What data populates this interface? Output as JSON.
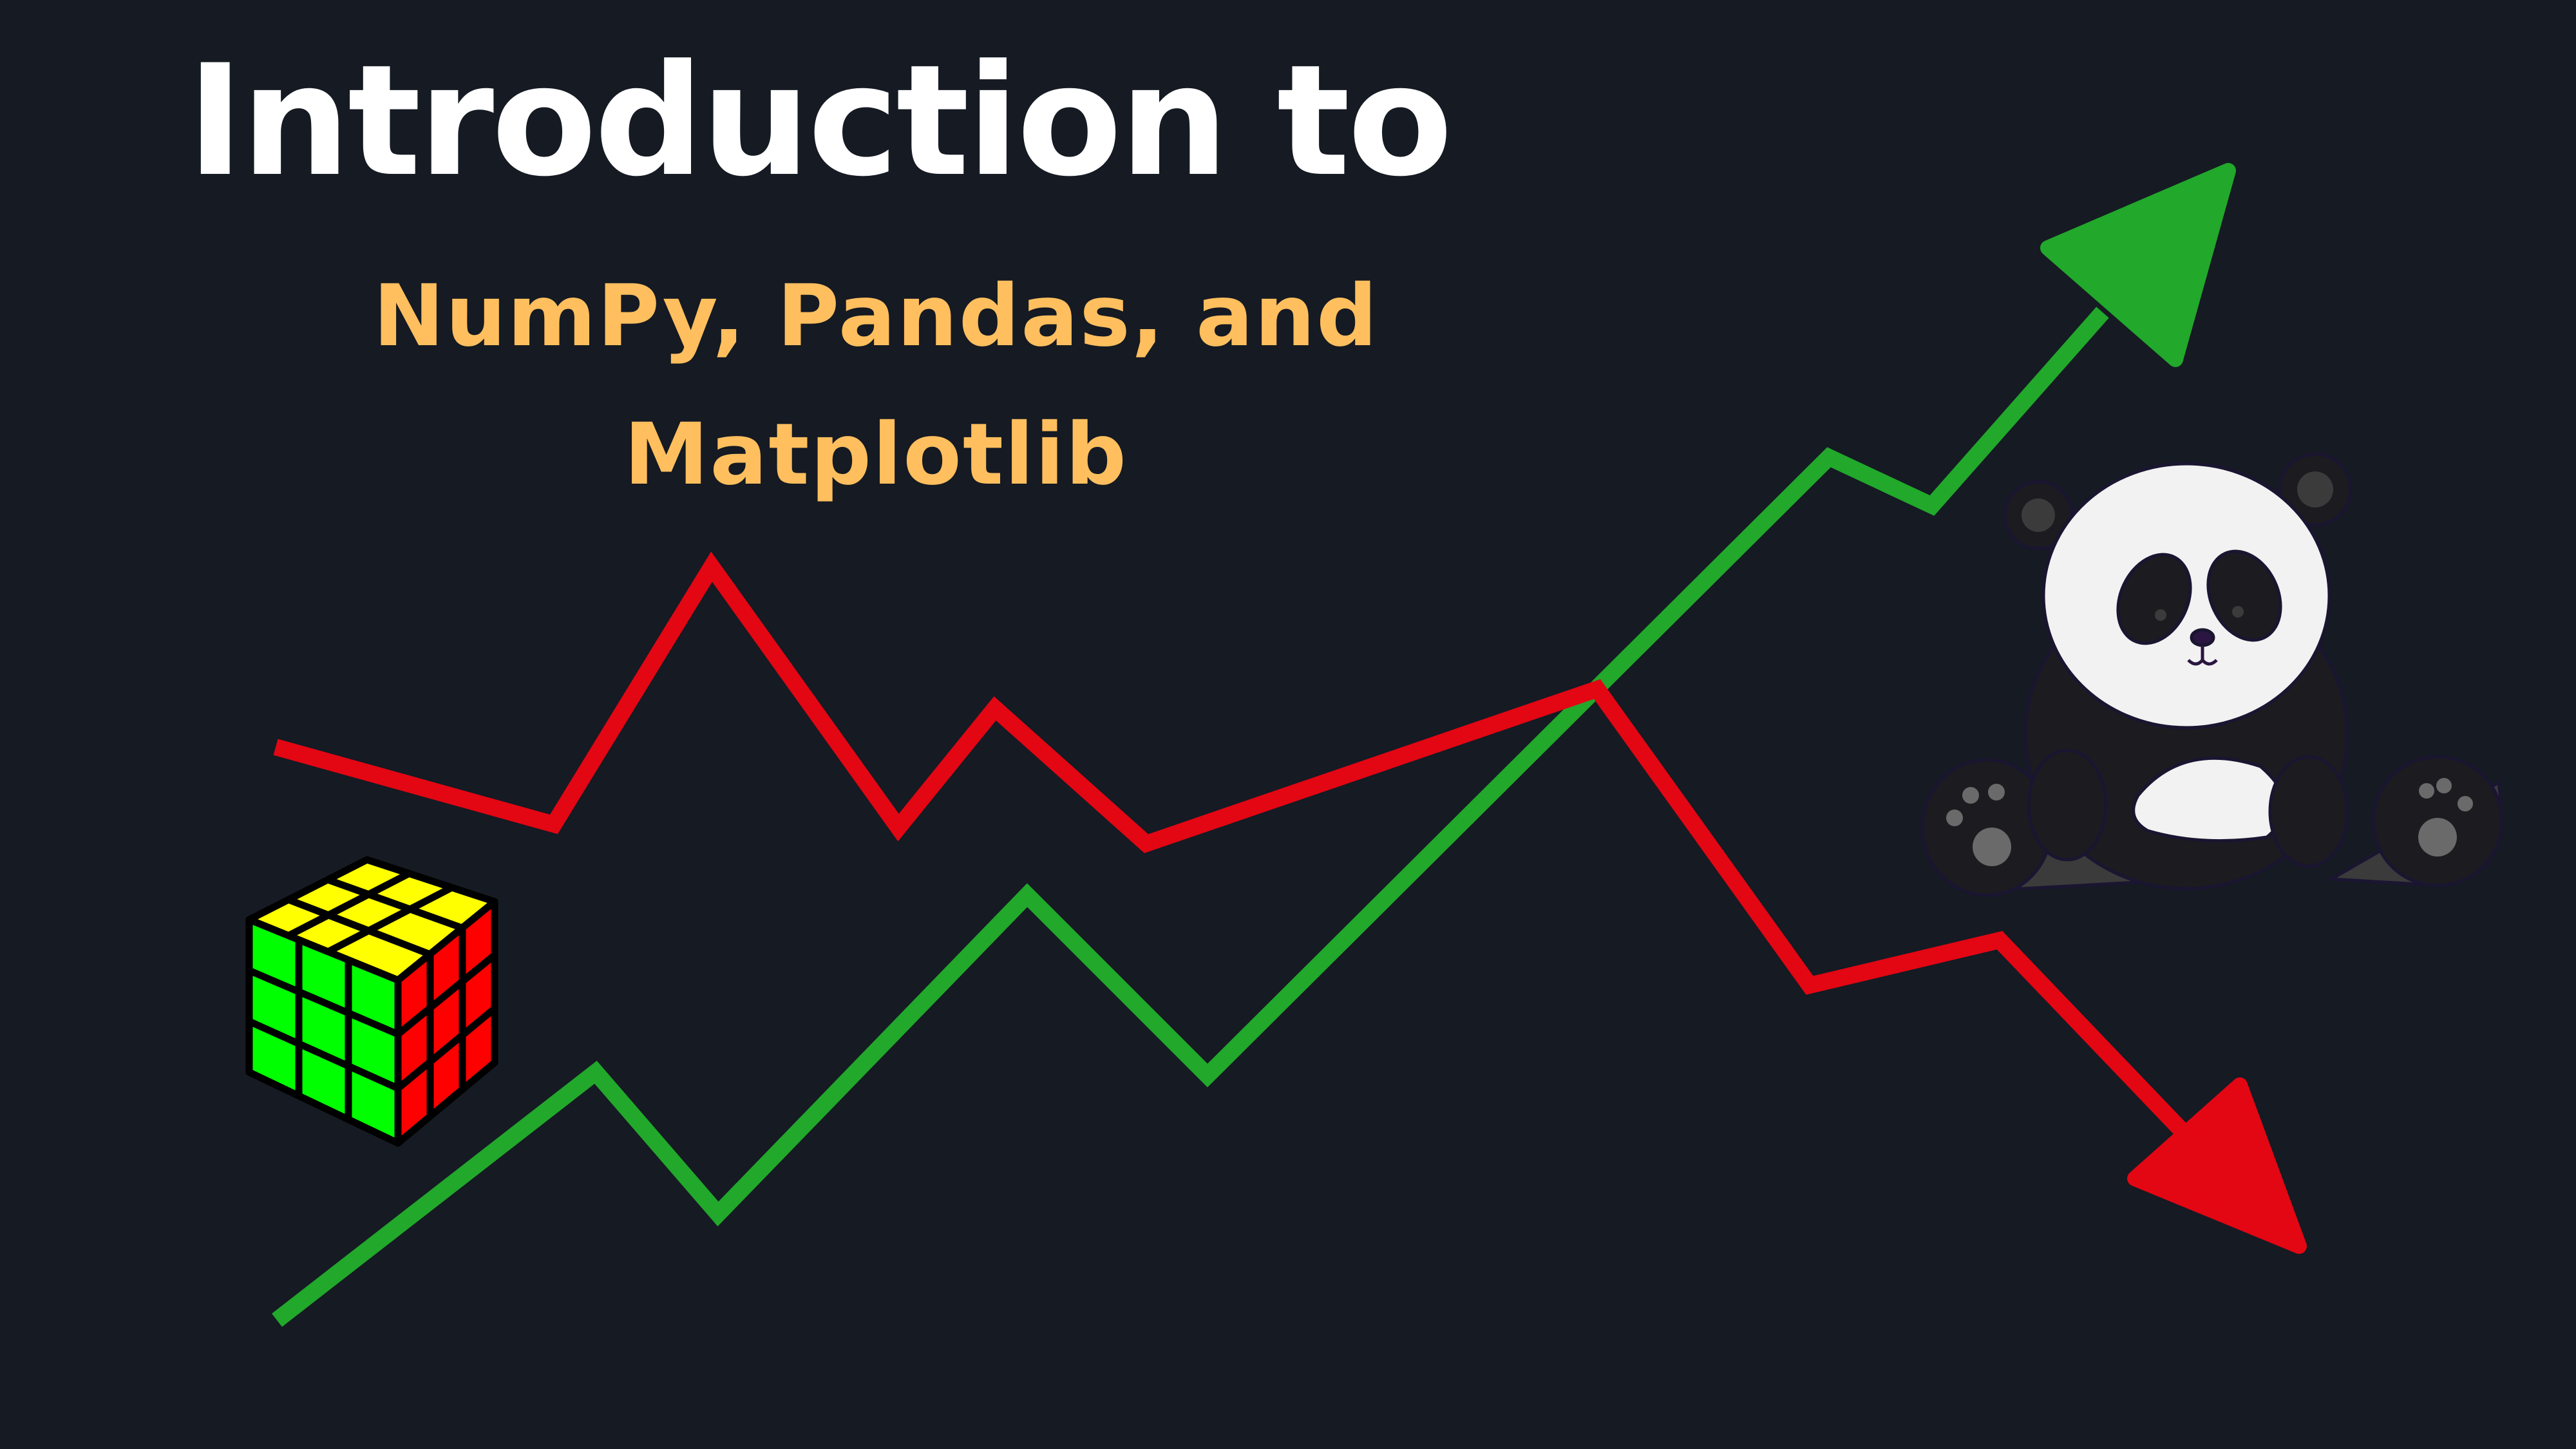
{
  "title": "Introduction to",
  "subtitle_line1": "NumPy, Pandas, and",
  "subtitle_line2": "Matplotlib",
  "colors": {
    "background": "#151a23",
    "title": "#ffffff",
    "subtitle": "#ffbf5e",
    "trend_up": "#22a82b",
    "trend_down": "#e30613",
    "cube_top": "#ffff00",
    "cube_left": "#00ff00",
    "cube_right": "#ff0000"
  },
  "icons": [
    "rubiks-cube-icon",
    "panda-icon",
    "up-trend-line",
    "down-trend-line"
  ]
}
